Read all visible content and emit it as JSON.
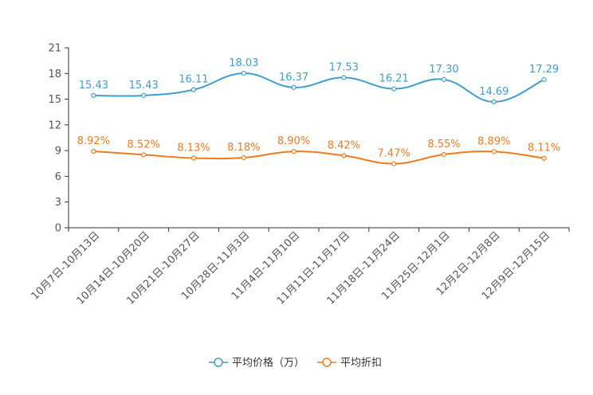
{
  "chart_data": {
    "type": "line",
    "categories": [
      "10月7日-10月13日",
      "10月14日-10月20日",
      "10月21日-10月27日",
      "10月28日-11月3日",
      "11月4日-11月10日",
      "11月11日-11月17日",
      "11月18日-11月24日",
      "11月25日-12月1日",
      "12月2日-12月8日",
      "12月9日-12月15日"
    ],
    "ylim": [
      0,
      21
    ],
    "yticks": [
      0,
      3,
      6,
      9,
      12,
      15,
      18,
      21
    ],
    "series": [
      {
        "name": "平均价格（万）",
        "color": "#3c9fd0",
        "values": [
          15.43,
          15.43,
          16.11,
          18.03,
          16.37,
          17.53,
          16.21,
          17.3,
          14.69,
          17.29
        ],
        "labels": [
          "15.43",
          "15.43",
          "16.11",
          "18.03",
          "16.37",
          "17.53",
          "16.21",
          "17.30",
          "14.69",
          "17.29"
        ]
      },
      {
        "name": "平均折扣",
        "color": "#f07a1c",
        "values": [
          8.92,
          8.52,
          8.13,
          8.18,
          8.9,
          8.42,
          7.47,
          8.55,
          8.89,
          8.11
        ],
        "labels": [
          "8.92%",
          "8.52%",
          "8.13%",
          "8.18%",
          "8.90%",
          "8.42%",
          "7.47%",
          "8.55%",
          "8.89%",
          "8.11%"
        ]
      }
    ],
    "legend_position": "bottom-center",
    "grid": false
  }
}
